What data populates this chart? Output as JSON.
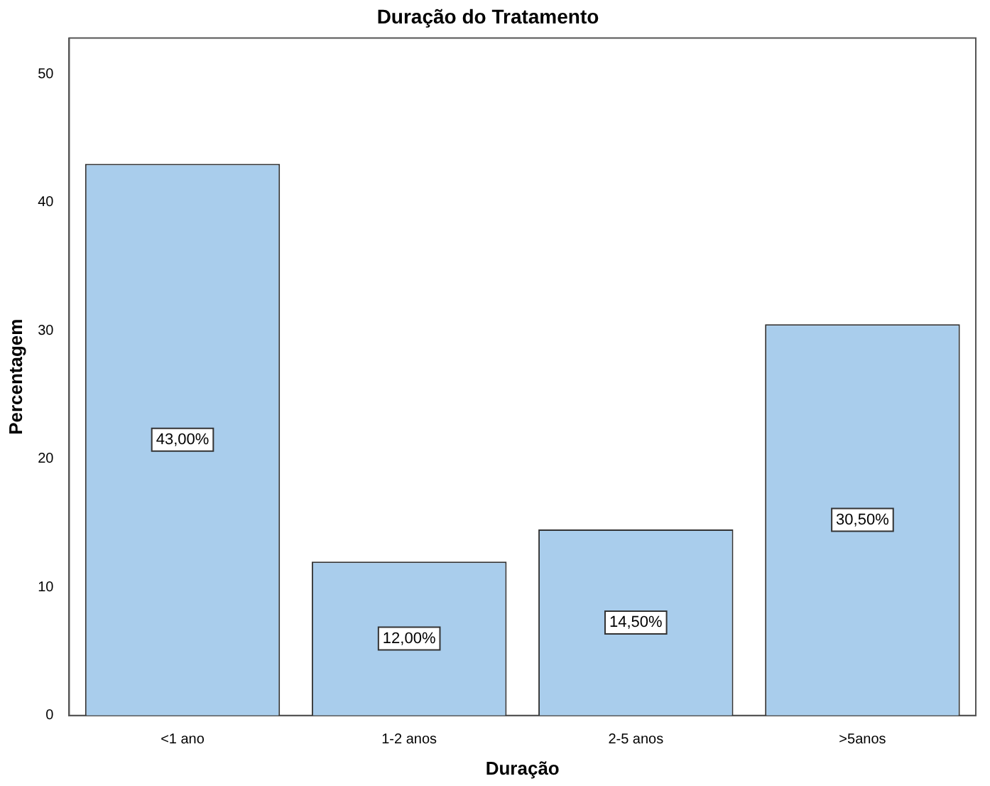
{
  "chart_data": {
    "type": "bar",
    "title": "Duração do Tratamento",
    "xlabel": "Duração",
    "ylabel": "Percentagem",
    "categories": [
      "<1 ano",
      "1-2 anos",
      "2-5 anos",
      ">5anos"
    ],
    "values": [
      43,
      12,
      14.5,
      30.5
    ],
    "value_labels": [
      "43,00%",
      "12,00%",
      "14,50%",
      "30,50%"
    ],
    "color": "#a9cdec",
    "ylim": [
      0,
      52.8
    ],
    "yticks": [
      0,
      10,
      20,
      30,
      40,
      50
    ],
    "grid": false,
    "legend": false
  }
}
